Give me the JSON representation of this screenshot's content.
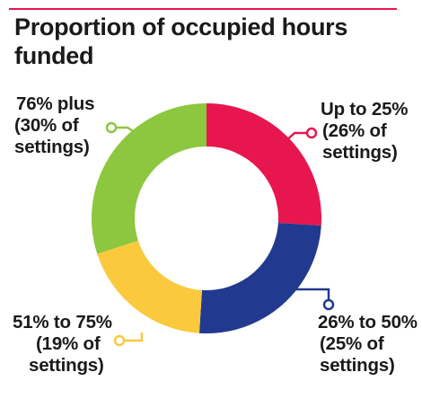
{
  "title": "Proportion of occupied hours funded",
  "chart_data": {
    "type": "pie",
    "donut": true,
    "title": "Proportion of occupied hours funded",
    "legend": "none",
    "slices": [
      {
        "label": "Up to 25%",
        "value": 26,
        "text": [
          "Up to 25%",
          "(26% of",
          "settings)"
        ],
        "color": "#e8164f"
      },
      {
        "label": "26% to 50%",
        "value": 25,
        "text": [
          "26% to 50%",
          "(25% of",
          "settings)"
        ],
        "color": "#213a8f"
      },
      {
        "label": "51% to 75%",
        "value": 19,
        "text": [
          "51% to 75%",
          "(19% of",
          "settings)"
        ],
        "color": "#fbc93d"
      },
      {
        "label": "76% plus",
        "value": 30,
        "text": [
          "76% plus",
          "(30% of",
          "settings)"
        ],
        "color": "#8dc63f"
      }
    ]
  }
}
